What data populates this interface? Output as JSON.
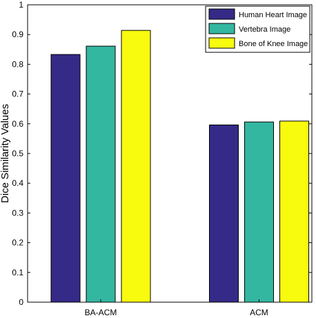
{
  "chart_data": {
    "type": "bar",
    "categories": [
      "BA-ACM",
      "ACM"
    ],
    "series": [
      {
        "name": "Human Heart Image",
        "values": [
          0.833,
          0.596
        ],
        "color": "#352a87"
      },
      {
        "name": "Vertebra Image",
        "values": [
          0.861,
          0.606
        ],
        "color": "#33b7a0"
      },
      {
        "name": "Bone of Knee Image",
        "values": [
          0.914,
          0.609
        ],
        "color": "#f9fb0e"
      }
    ],
    "title": "",
    "xlabel": "",
    "ylabel": "Dice Similarity Values",
    "ylim": [
      0,
      1
    ],
    "yticks": [
      "0",
      "0.1",
      "0.2",
      "0.3",
      "0.4",
      "0.5",
      "0.6",
      "0.7",
      "0.8",
      "0.9",
      "1"
    ],
    "grid": false,
    "legend_position": "top-right"
  }
}
